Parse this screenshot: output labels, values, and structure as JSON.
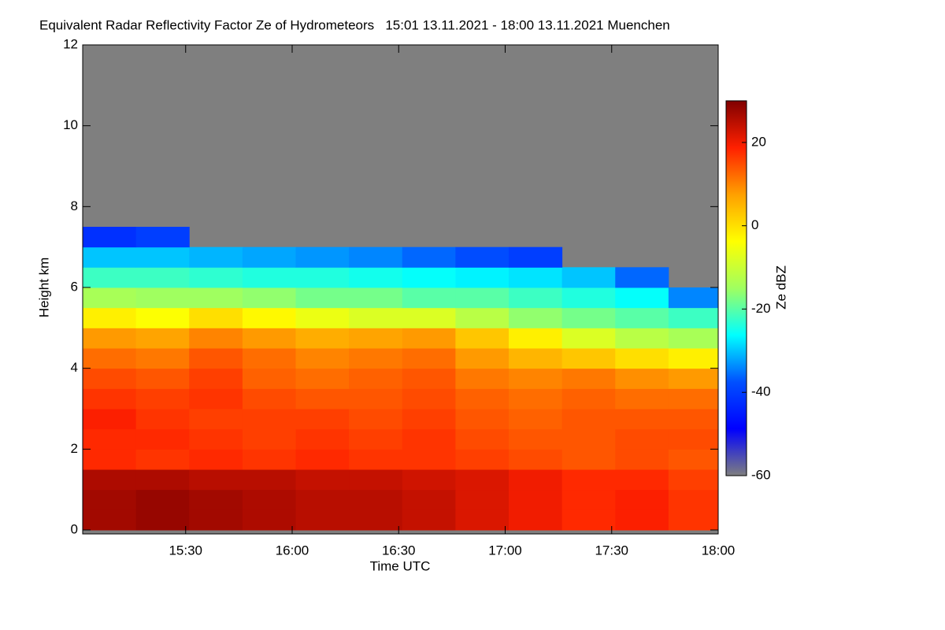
{
  "chart_data": {
    "type": "heatmap",
    "title": "Equivalent Radar Reflectivity Factor Ze of Hydrometeors   15:01 13.11.2021 - 18:00 13.11.2021 Muenchen",
    "xlabel": "Time UTC",
    "ylabel": "Height km",
    "zlabel": "Ze dBZ",
    "xlim": [
      901,
      1080
    ],
    "xticks": [
      {
        "value": 930,
        "label": "15:30"
      },
      {
        "value": 960,
        "label": "16:00"
      },
      {
        "value": 990,
        "label": "16:30"
      },
      {
        "value": 1020,
        "label": "17:00"
      },
      {
        "value": 1050,
        "label": "17:30"
      },
      {
        "value": 1080,
        "label": "18:00"
      }
    ],
    "ylim": [
      0,
      12
    ],
    "yticks": [
      0,
      2,
      4,
      6,
      8,
      10,
      12
    ],
    "zlim": [
      -60,
      30
    ],
    "zticks": [
      -60,
      -40,
      -20,
      0,
      20
    ],
    "colormap": [
      "#7f7f7f",
      "#0000ff",
      "#0050ff",
      "#00ffff",
      "#a0ff60",
      "#ffff00",
      "#ffa000",
      "#ff2000",
      "#800000"
    ],
    "x": [
      908.5,
      923.5,
      938.5,
      953.5,
      968.5,
      983.5,
      998.5,
      1013.5,
      1028.5,
      1043.5,
      1058.5,
      1073.5
    ],
    "y": [
      0.25,
      0.75,
      1.25,
      1.75,
      2.25,
      2.75,
      3.25,
      3.75,
      4.25,
      4.75,
      5.25,
      5.75,
      6.25,
      6.75,
      7.25
    ],
    "z": [
      [
        27,
        28,
        27,
        26,
        25,
        25,
        24,
        22,
        20,
        18,
        19,
        17
      ],
      [
        27,
        28,
        27,
        26,
        25,
        25,
        24,
        22,
        20,
        18,
        19,
        17
      ],
      [
        26,
        26,
        25,
        25,
        24,
        24,
        23,
        22,
        20,
        18,
        18,
        16
      ],
      [
        18,
        17,
        18,
        17,
        18,
        17,
        17,
        16,
        15,
        14,
        15,
        14
      ],
      [
        18,
        18,
        17,
        16,
        17,
        16,
        17,
        15,
        14,
        14,
        15,
        15
      ],
      [
        19,
        17,
        16,
        16,
        16,
        15,
        16,
        14,
        13,
        14,
        14,
        14
      ],
      [
        17,
        16,
        17,
        15,
        14,
        14,
        15,
        13,
        12,
        13,
        12,
        12
      ],
      [
        15,
        14,
        16,
        13,
        12,
        13,
        14,
        11,
        10,
        11,
        9,
        8
      ],
      [
        12,
        11,
        14,
        12,
        10,
        11,
        12,
        8,
        5,
        3,
        0,
        -2
      ],
      [
        8,
        7,
        10,
        8,
        6,
        7,
        8,
        3,
        -2,
        -8,
        -12,
        -14
      ],
      [
        -2,
        -4,
        0,
        -3,
        -6,
        -8,
        -8,
        -12,
        -16,
        -18,
        -20,
        -22
      ],
      [
        -14,
        -15,
        -15,
        -16,
        -18,
        -18,
        -20,
        -20,
        -22,
        -24,
        -26,
        -34
      ],
      [
        -22,
        -22,
        -23,
        -24,
        -24,
        -25,
        -26,
        -27,
        -28,
        -30,
        -36,
        null
      ],
      [
        -30,
        -30,
        -31,
        -32,
        -33,
        -34,
        -36,
        -38,
        -40,
        null,
        null,
        null
      ],
      [
        -42,
        -40,
        null,
        null,
        null,
        null,
        null,
        null,
        null,
        null,
        null,
        null
      ]
    ]
  }
}
